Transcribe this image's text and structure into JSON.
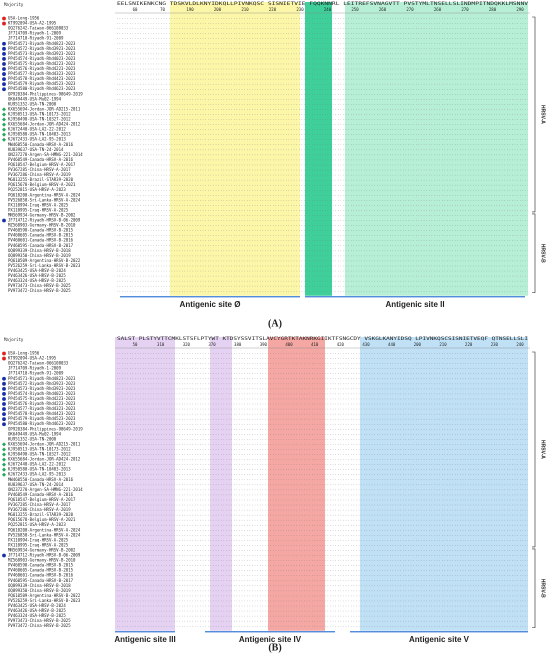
{
  "sequences": [
    {
      "name": "USA-Long-1956",
      "marker": "#e02020"
    },
    {
      "name": "KT992094-USA-A2-1995",
      "marker": "#e02020"
    },
    {
      "name": "OQ276242-Taiwan-066108033",
      "marker": null
    },
    {
      "name": "JF714709-Riyadh-1-2009",
      "marker": null
    },
    {
      "name": "JF714710-Riyadh-91-2009",
      "marker": null
    },
    {
      "name": "PP454571-Riyadh-Rhd4823-2023",
      "marker": "#1a2fa8"
    },
    {
      "name": "PP454572-Riyadh-Rhd3923-2023",
      "marker": "#1a2fa8"
    },
    {
      "name": "PP454573-Riyadh-Rhd3923-2023",
      "marker": "#1a2fa8"
    },
    {
      "name": "PP454574-Riyadh-Rhd4023-2023",
      "marker": "#1a2fa8"
    },
    {
      "name": "PP454575-Riyadh-Rhd4223-2023",
      "marker": "#1a2fa8"
    },
    {
      "name": "PP454576-Riyadh-Rhd4223-2023",
      "marker": "#1a2fa8"
    },
    {
      "name": "PP454577-Riyadh-Rhd4323-2023",
      "marker": "#1a2fa8"
    },
    {
      "name": "PP454578-Riyadh-Rhd4423-2023",
      "marker": "#1a2fa8"
    },
    {
      "name": "PP454579-Riyadh-Rhd4523-2023",
      "marker": "#1a2fa8"
    },
    {
      "name": "PP454580-Riyadh-Rhd4623-2023",
      "marker": "#1a2fa8"
    },
    {
      "name": "OP920384-Philippines-98649-2019",
      "marker": null
    },
    {
      "name": "OK649449-USA-Mu02-1994",
      "marker": null
    },
    {
      "name": "KU951352-USA-TN-2008",
      "marker": null
    },
    {
      "name": "KX655694-Jordan-JOR-AD215-2011",
      "marker": "#1fa85a"
    },
    {
      "name": "KJ950513-USA-TN-10173-2012",
      "marker": "#1fa85a"
    },
    {
      "name": "KJ950490-USA-TN-10327-2012",
      "marker": "#1fa85a"
    },
    {
      "name": "KX655684-Jordan-JOR-AD424-2012",
      "marker": "#1fa85a"
    },
    {
      "name": "KJ672440-USA-LA2-22-2012",
      "marker": "#1fa85a"
    },
    {
      "name": "KJ950580-USA-TN-10403-2013",
      "marker": "#1fa85a"
    },
    {
      "name": "KJ672433-USA-LA2-95-2013",
      "marker": "#1fa85a"
    },
    {
      "name": "MW460550-Canada-HRSV-A-2016",
      "marker": null
    },
    {
      "name": "KU839637-USA-TN-24-2014",
      "marker": null
    },
    {
      "name": "ON237278-Argen-SA-HMNG-221-2014",
      "marker": null
    },
    {
      "name": "PV460549-Canada-HRSV-A-2016",
      "marker": null
    },
    {
      "name": "PQ610547-Belgium-HRSV-A-2017",
      "marker": null
    },
    {
      "name": "PV367285-China-HRSV-A-2017",
      "marker": null
    },
    {
      "name": "PV367286-China-HRSV-A-2019",
      "marker": null
    },
    {
      "name": "MG813255-Brazil-STAR39-2020",
      "marker": null
    },
    {
      "name": "PQ615678-Belgium-HRSV-A-2021",
      "marker": null
    },
    {
      "name": "PQ252815-USA-HRSV-A-2023",
      "marker": null
    },
    {
      "name": "PQ610200-Argentina-HRSV-A-2024",
      "marker": null
    },
    {
      "name": "PV526850-Sri-Lanka-HRSV-A-2024",
      "marker": null
    },
    {
      "name": "PX110994-Iraq-HRSV-A-2025",
      "marker": null
    },
    {
      "name": "PX110995-Iraq-HRSV-A-2025",
      "marker": null
    },
    {
      "name": "MN569934-Germany-HRSV-B-2002",
      "marker": null
    },
    {
      "name": "JF714712-Riyadh-HRSV-B-06-2009",
      "marker": "#1a2fa8"
    },
    {
      "name": "MZ568903-Germany-HRSV-B-2010",
      "marker": null
    },
    {
      "name": "PV460598-Canada-HRSV-B-2015",
      "marker": null
    },
    {
      "name": "PV460605-Canada-HRSV-B-2015",
      "marker": null
    },
    {
      "name": "PV460601-Canada-HRSV-B-2016",
      "marker": null
    },
    {
      "name": "PV460595-Canada-HRSV-B-2017",
      "marker": null
    },
    {
      "name": "OQ899339-China-HRSV-B-2018",
      "marker": null
    },
    {
      "name": "OQ899350-China-HRSV-B-2019",
      "marker": null
    },
    {
      "name": "PQ610509-Argentina-HRSV-B-2022",
      "marker": null
    },
    {
      "name": "PV526259-Sri-Lanka-HRSV-B-2023",
      "marker": null
    },
    {
      "name": "PV463425-USA-HRSV-B-2024",
      "marker": null
    },
    {
      "name": "PV463426-USA-HRSV-B-2025",
      "marker": null
    },
    {
      "name": "PV463324-USA-HRSV-B-2025",
      "marker": null
    },
    {
      "name": "PV973473-China-HRSV-B-2025",
      "marker": null
    },
    {
      "name": "PV973472-China-HRSV-B-2025",
      "marker": null
    }
  ],
  "groups": [
    {
      "label": "HRSV-A",
      "first": 0,
      "last": 38
    },
    {
      "label": "HRSV-B",
      "first": 39,
      "last": 54
    }
  ],
  "panels": [
    {
      "label": "(A)",
      "header": "Majority",
      "majority": "EELSNIKENKCNG TDSKVLDLKNYIDKQLLPIVNKQSC SISNIETVIE  FQQKNNRL LEITREFSVNAGVTT PVSTYMLTNSELLSLINDMPITNDQKKLMSNNV",
      "ruler": [
        "60",
        "70",
        "190",
        "200",
        "210",
        "220",
        "230",
        "240",
        "250",
        "260",
        "270",
        "260",
        "270",
        "280",
        "290"
      ],
      "sites": [
        {
          "label": "Antigenic site Ø",
          "x0": 120,
          "x1": 300
        },
        {
          "label": "Antigenic site II",
          "x0": 305,
          "x1": 525
        }
      ],
      "bands": [
        {
          "x0": 170,
          "x1": 300,
          "color": "#fbf6a8"
        },
        {
          "x0": 305,
          "x1": 332,
          "color": "#3fcf9a"
        },
        {
          "x0": 345,
          "x1": 528,
          "color": "#b7efd6"
        }
      ]
    },
    {
      "label": "(B)",
      "header": "Majority",
      "majority": "SALST PLSTYVTTCMKLSTSFLPTYWT KTDSYSSVITSLAVCYGRTKTAKNRKGIIKTFSNGCDY VSKGLKANYIDSQ LPIVNKQSCSISNIETVEQF QTNSELLSLI",
      "ruler": [
        "50",
        "310",
        "320",
        "370",
        "380",
        "390",
        "400",
        "410",
        "420",
        "430",
        "440",
        "200",
        "210",
        "220",
        "230",
        "240"
      ],
      "sites": [
        {
          "label": "Antigenic site III",
          "x0": 115,
          "x1": 175
        },
        {
          "label": "Antigenic site IV",
          "x0": 205,
          "x1": 335
        },
        {
          "label": "Antigenic site V",
          "x0": 350,
          "x1": 528
        }
      ],
      "bands": [
        {
          "x0": 115,
          "x1": 175,
          "color": "#e5d2f2"
        },
        {
          "x0": 210,
          "x1": 232,
          "color": "#e5d2f2"
        },
        {
          "x0": 268,
          "x1": 325,
          "color": "#f4a7a3"
        },
        {
          "x0": 360,
          "x1": 528,
          "color": "#bfe0f5"
        }
      ]
    }
  ]
}
